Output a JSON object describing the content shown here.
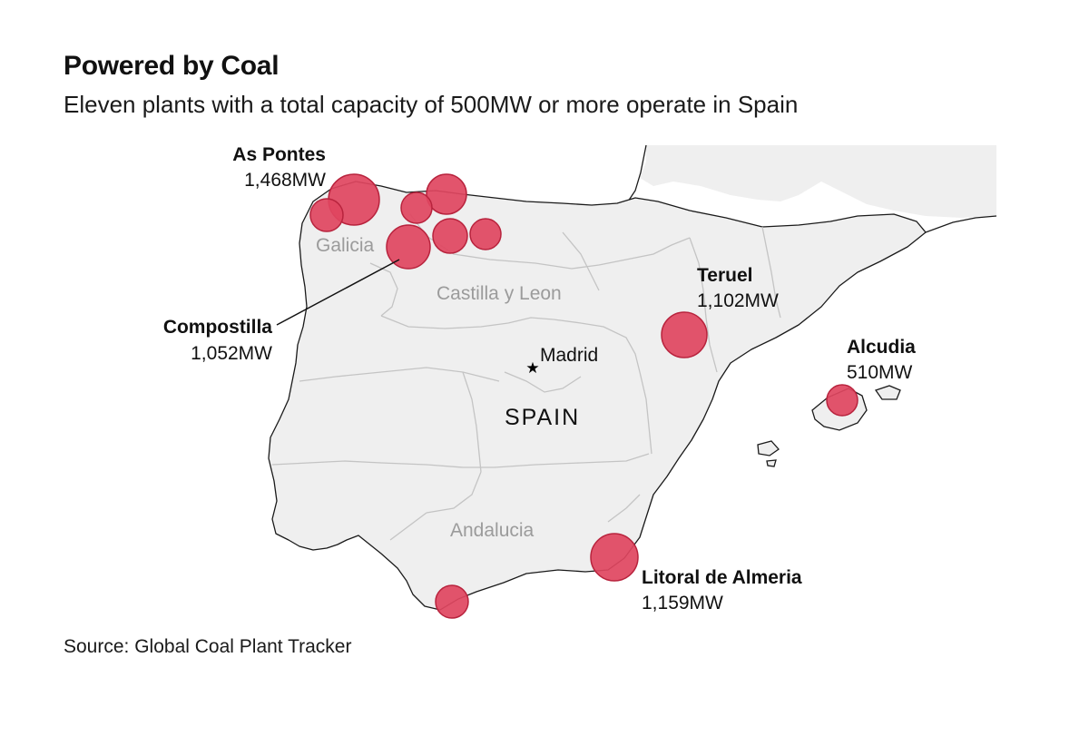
{
  "title": "Powered by Coal",
  "subtitle": "Eleven plants with a total capacity of 500MW or more operate in Spain",
  "source": "Source: Global Coal Plant Tracker",
  "country_label": "SPAIN",
  "capital": {
    "name": "Madrid",
    "icon": "star-icon"
  },
  "regions": [
    "Galicia",
    "Castilla y Leon",
    "Andalucia"
  ],
  "labeled_plants": [
    {
      "name": "As Pontes",
      "capacity": "1,468MW"
    },
    {
      "name": "Compostilla",
      "capacity": "1,052MW"
    },
    {
      "name": "Teruel",
      "capacity": "1,102MW"
    },
    {
      "name": "Alcudia",
      "capacity": "510MW"
    },
    {
      "name": "Litoral de Almeria",
      "capacity": "1,159MW"
    }
  ],
  "plant_count": 11,
  "colors": {
    "land": "#efefef",
    "border": "#1a1a1a",
    "region_border": "#c4c4c4",
    "bubble_fill": "#e0455f",
    "bubble_stroke": "#b8233d"
  }
}
